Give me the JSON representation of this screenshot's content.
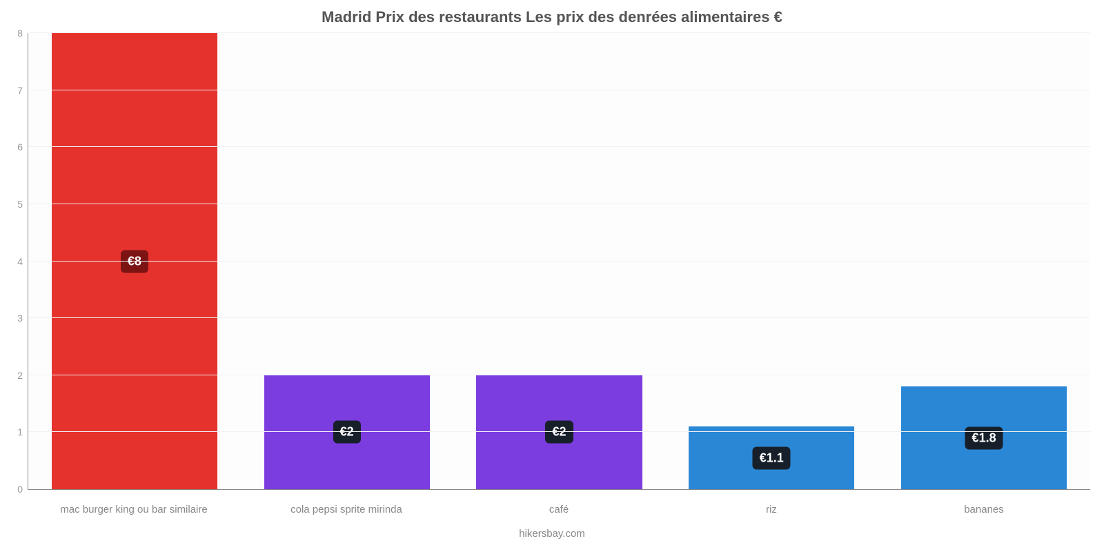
{
  "chart": {
    "type": "bar",
    "title": "Madrid Prix des restaurants Les prix des denrées alimentaires €",
    "title_fontsize": 22,
    "title_color": "#555555",
    "credit": "hikersbay.com",
    "credit_color": "#888888",
    "credit_fontsize": 15,
    "background_color": "#ffffff",
    "plot_background_color": "#fdfdfd",
    "axis_color": "#888888",
    "grid_color": "#f1f1f1",
    "ylim": [
      0,
      8
    ],
    "ytick_step": 1,
    "ytick_label_color": "#999999",
    "ytick_fontsize": 14,
    "xlabel_color": "#888888",
    "xlabel_fontsize": 15,
    "bar_width": 0.78,
    "value_label_bg": "#17202a",
    "value_label_color": "#ffffff",
    "value_label_fontsize": 18,
    "categories": [
      "mac burger king ou bar similaire",
      "cola pepsi sprite mirinda",
      "café",
      "riz",
      "bananes"
    ],
    "values": [
      8,
      2,
      2,
      1.1,
      1.8
    ],
    "value_labels": [
      "€8",
      "€2",
      "€2",
      "€1.1",
      "€1.8"
    ],
    "value_label_bgs": [
      "#7c1414",
      "#17202a",
      "#17202a",
      "#17202a",
      "#17202a"
    ],
    "bar_colors": [
      "#e5322d",
      "#7b3ce0",
      "#7b3ce0",
      "#2a87d6",
      "#2a87d6"
    ]
  }
}
